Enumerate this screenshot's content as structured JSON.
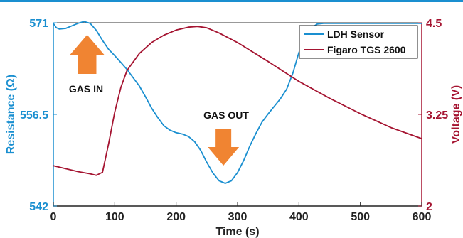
{
  "chart_data": {
    "type": "line",
    "xlabel": "Time (s)",
    "ylabel_left": "Resistance (Ω)",
    "ylabel_right": "Voltage (V)",
    "xlim": [
      0,
      600
    ],
    "ylim_left": [
      542,
      571
    ],
    "ylim_right": [
      2,
      4.5
    ],
    "x_ticks": [
      "0",
      "100",
      "200",
      "300",
      "400",
      "500",
      "600"
    ],
    "y_left_ticks": [
      "542",
      "556.5",
      "571"
    ],
    "y_right_ticks": [
      "2",
      "3.25",
      "4.5"
    ],
    "grid": false,
    "legend_position": "top-right",
    "colors": {
      "ldh": "#1a8fd0",
      "figaro": "#a51431",
      "arrow": "#f08432"
    },
    "series": [
      {
        "name": "LDH Sensor",
        "axis": "left",
        "x": [
          0,
          5,
          10,
          20,
          30,
          40,
          50,
          60,
          70,
          80,
          90,
          100,
          110,
          120,
          130,
          140,
          150,
          160,
          170,
          180,
          190,
          200,
          210,
          220,
          230,
          240,
          250,
          260,
          270,
          280,
          290,
          300,
          310,
          320,
          330,
          340,
          350,
          360,
          370,
          380,
          390,
          400,
          410,
          420,
          430,
          440,
          450,
          500,
          550,
          600
        ],
        "y": [
          570.9,
          570.2,
          570.0,
          570.1,
          570.5,
          570.9,
          571.2,
          570.9,
          569.8,
          568.2,
          566.8,
          565.8,
          564.7,
          563.6,
          562.3,
          561.0,
          559.3,
          557.5,
          556.0,
          554.7,
          554.0,
          553.6,
          553.4,
          553.0,
          552.2,
          550.8,
          548.9,
          547.2,
          546.0,
          545.6,
          546.0,
          547.3,
          549.2,
          551.5,
          553.5,
          555.3,
          556.6,
          557.8,
          559.0,
          560.5,
          563.0,
          566.3,
          568.8,
          570.2,
          570.8,
          570.9,
          570.9,
          570.9,
          570.9,
          570.9
        ]
      },
      {
        "name": "Figaro TGS 2600",
        "axis": "right",
        "x": [
          0,
          20,
          40,
          60,
          70,
          80,
          90,
          100,
          110,
          120,
          140,
          160,
          180,
          200,
          220,
          235,
          250,
          270,
          300,
          350,
          400,
          450,
          500,
          550,
          600
        ],
        "y": [
          2.55,
          2.51,
          2.47,
          2.44,
          2.42,
          2.46,
          2.85,
          3.28,
          3.62,
          3.85,
          4.08,
          4.23,
          4.33,
          4.4,
          4.44,
          4.45,
          4.43,
          4.36,
          4.23,
          3.97,
          3.7,
          3.47,
          3.26,
          3.07,
          2.92
        ]
      }
    ],
    "annotations": [
      {
        "text": "GAS IN",
        "x": 55,
        "arrow": "up"
      },
      {
        "text": "GAS OUT",
        "x": 277,
        "arrow": "down"
      }
    ]
  }
}
